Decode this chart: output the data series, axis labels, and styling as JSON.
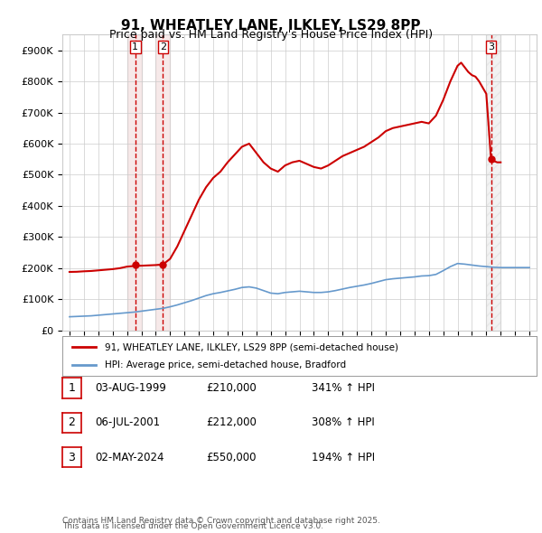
{
  "title": "91, WHEATLEY LANE, ILKLEY, LS29 8PP",
  "subtitle": "Price paid vs. HM Land Registry's House Price Index (HPI)",
  "legend_line1": "91, WHEATLEY LANE, ILKLEY, LS29 8PP (semi-detached house)",
  "legend_line2": "HPI: Average price, semi-detached house, Bradford",
  "footer_line1": "Contains HM Land Registry data © Crown copyright and database right 2025.",
  "footer_line2": "This data is licensed under the Open Government Licence v3.0.",
  "transactions": [
    {
      "num": 1,
      "date": "03-AUG-1999",
      "price": 210000,
      "hpi_pct": "341% ↑ HPI",
      "year": 1999.58
    },
    {
      "num": 2,
      "date": "06-JUL-2001",
      "price": 212000,
      "hpi_pct": "308% ↑ HPI",
      "year": 2001.5
    },
    {
      "num": 3,
      "date": "02-MAY-2024",
      "price": 550000,
      "hpi_pct": "194% ↑ HPI",
      "year": 2024.33
    }
  ],
  "property_color": "#cc0000",
  "hpi_color": "#6699cc",
  "vline_color_1": "#cc0000",
  "vline_color_2": "#cc0000",
  "vline_color_3": "#cc0000",
  "shade_color_1": "#ddaaaa",
  "shade_color_2": "#ddaaaa",
  "shade_color_3": "#dddddd",
  "xlim": [
    1994.5,
    2027.5
  ],
  "ylim": [
    0,
    950000
  ],
  "yticks": [
    0,
    100000,
    200000,
    300000,
    400000,
    500000,
    600000,
    700000,
    800000,
    900000
  ],
  "ytick_labels": [
    "£0",
    "£100K",
    "£200K",
    "£300K",
    "£400K",
    "£500K",
    "£600K",
    "£700K",
    "£800K",
    "£900K"
  ],
  "xticks": [
    1995,
    1996,
    1997,
    1998,
    1999,
    2000,
    2001,
    2002,
    2003,
    2004,
    2005,
    2006,
    2007,
    2008,
    2009,
    2010,
    2011,
    2012,
    2013,
    2014,
    2015,
    2016,
    2017,
    2018,
    2019,
    2020,
    2021,
    2022,
    2023,
    2024,
    2025,
    2026,
    2027
  ],
  "background_color": "#ffffff",
  "grid_color": "#cccccc"
}
